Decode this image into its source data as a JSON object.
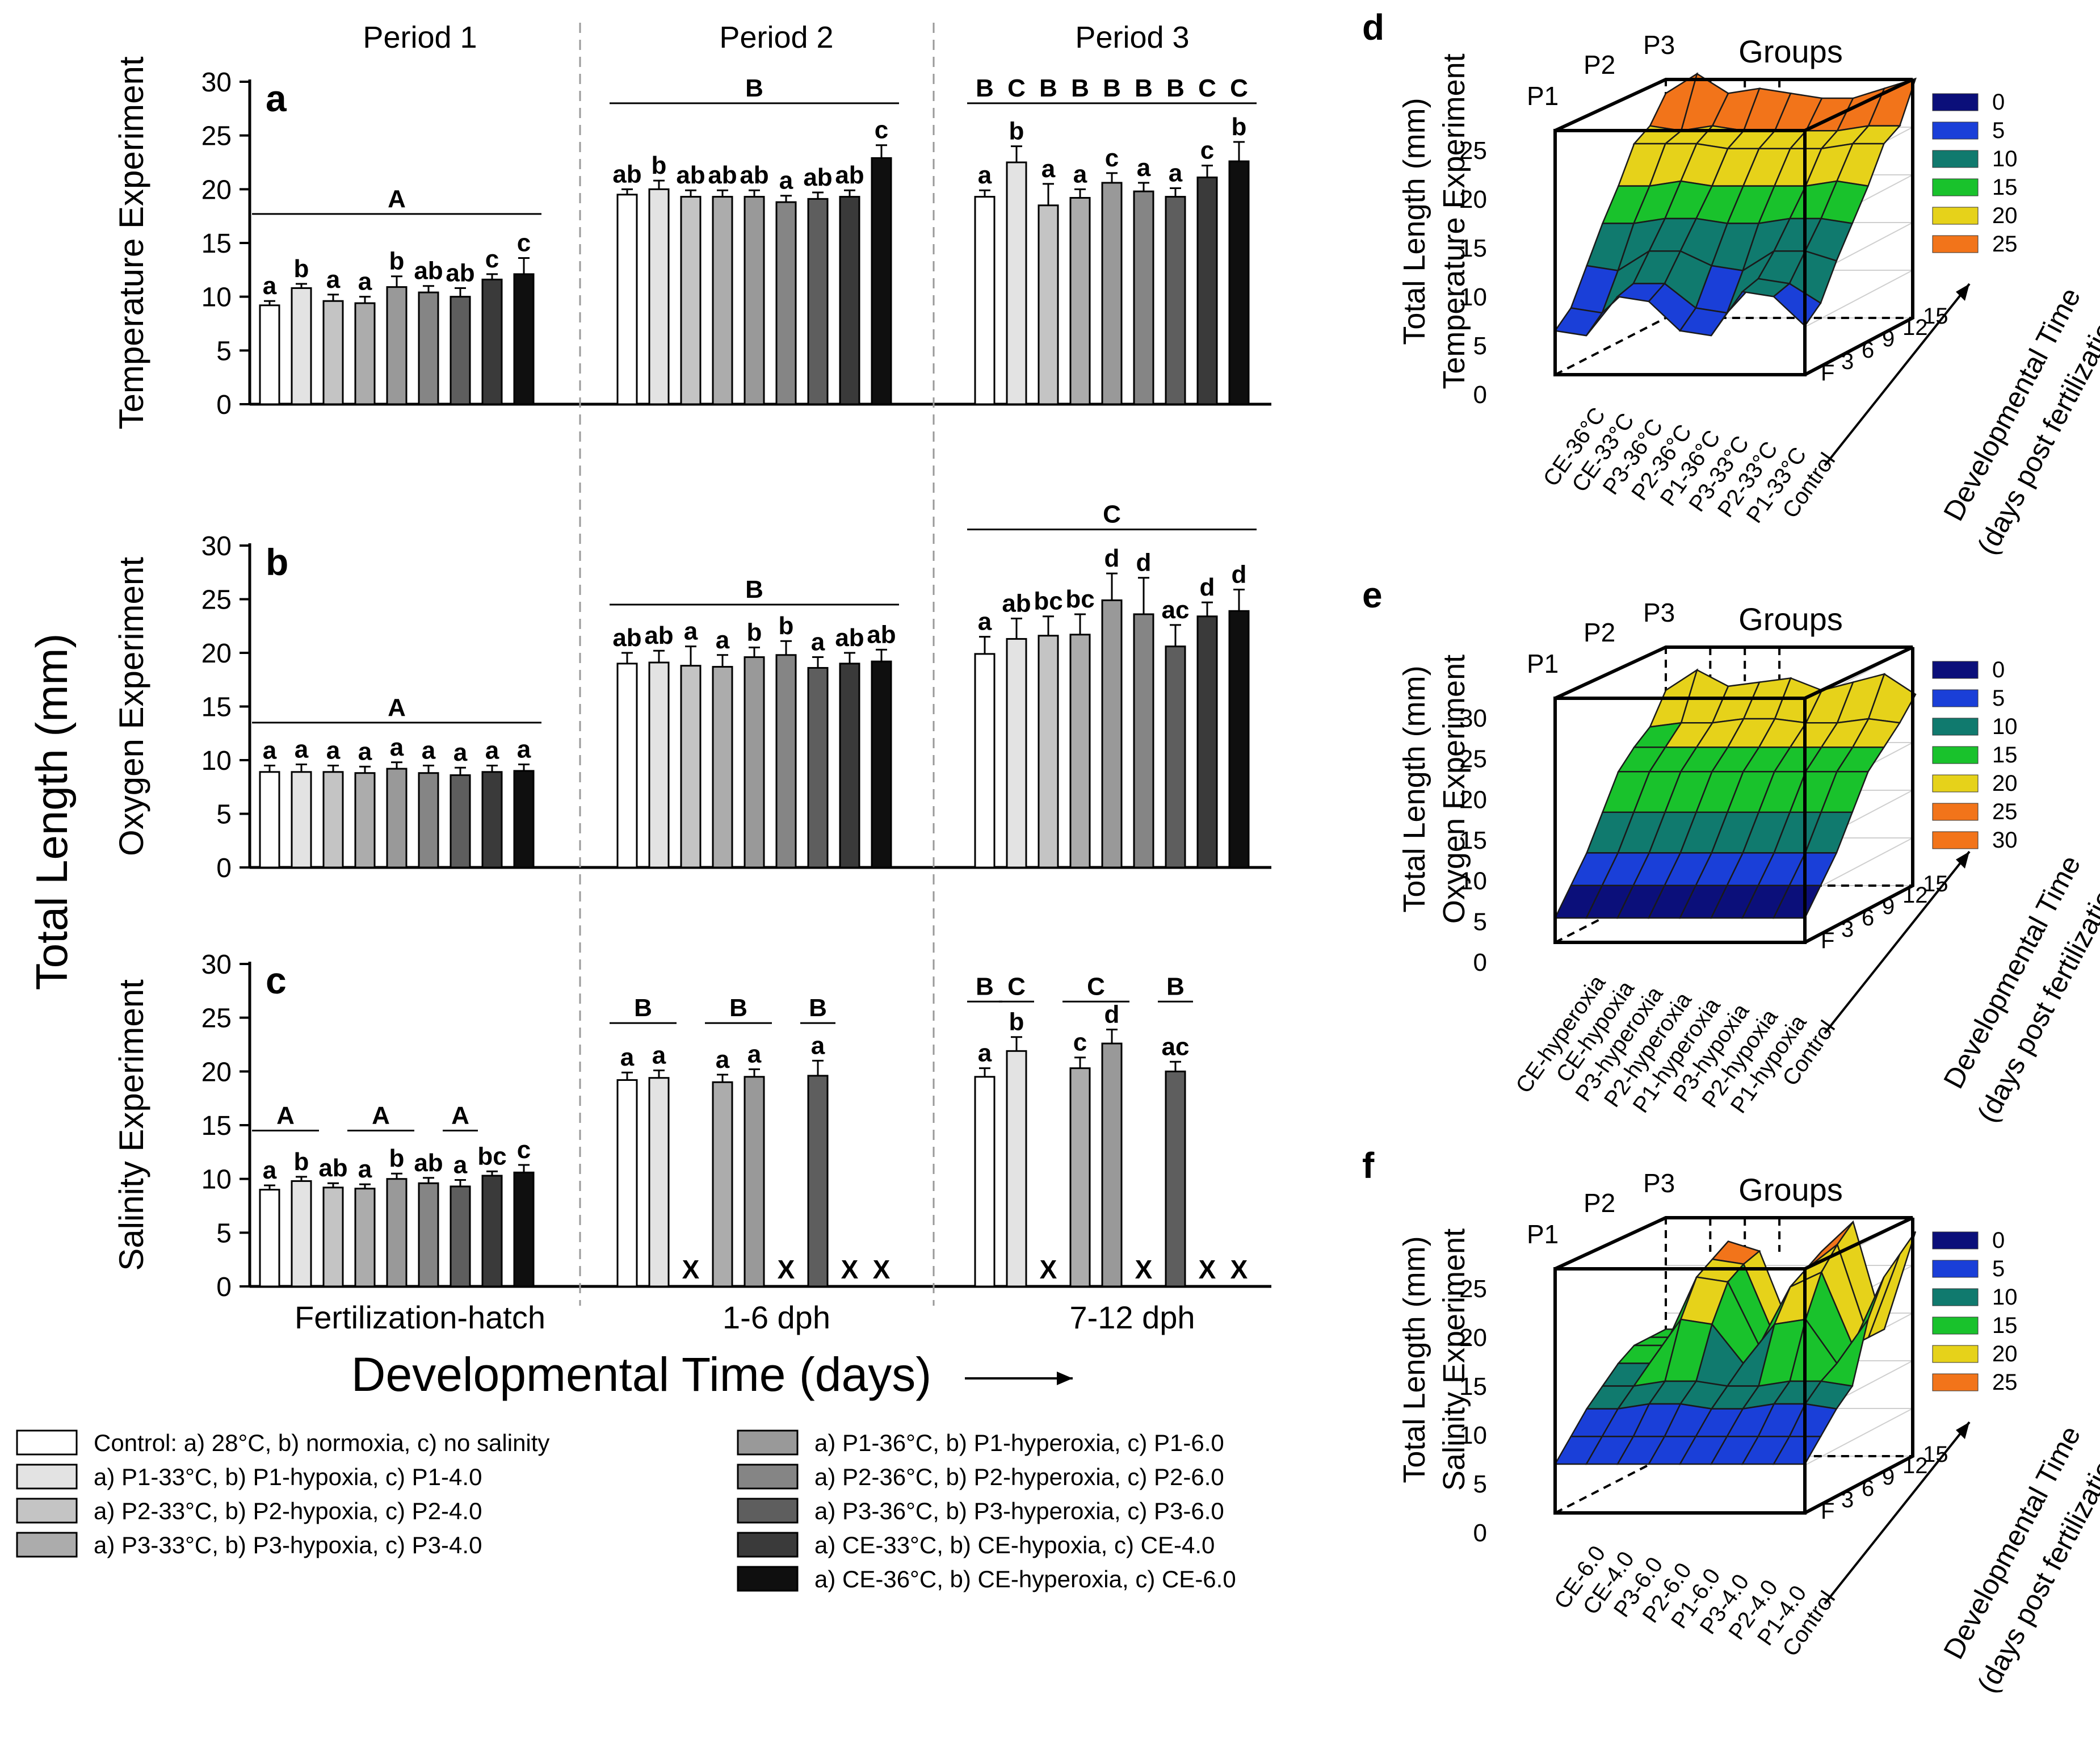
{
  "chart_data": [
    {
      "id": "a",
      "type": "bar",
      "panel_letter": "a",
      "ylabel": "Temperature Experiment",
      "ylim": [
        0,
        30
      ],
      "yticks": [
        "0",
        "5",
        "10",
        "15",
        "20",
        "25",
        "30"
      ],
      "period_titles": [
        "Period 1",
        "Period 2",
        "Period 3"
      ],
      "periods": [
        {
          "values": [
            9.2,
            10.8,
            9.6,
            9.4,
            10.9,
            10.4,
            10.0,
            11.6,
            12.1
          ],
          "errors": [
            0.4,
            0.4,
            0.6,
            0.6,
            1.0,
            0.6,
            0.8,
            0.5,
            1.5
          ],
          "labels": [
            "a",
            "b",
            "a",
            "a",
            "b",
            "ab",
            "ab",
            "c",
            "c"
          ]
        },
        {
          "values": [
            19.5,
            20.0,
            19.3,
            19.3,
            19.3,
            18.8,
            19.1,
            19.3,
            22.9
          ],
          "errors": [
            0.5,
            0.8,
            0.6,
            0.6,
            0.6,
            0.6,
            0.6,
            0.6,
            1.2
          ],
          "labels": [
            "ab",
            "b",
            "ab",
            "ab",
            "ab",
            "a",
            "ab",
            "ab",
            "c"
          ]
        },
        {
          "values": [
            19.3,
            22.5,
            18.5,
            19.2,
            20.6,
            19.8,
            19.3,
            21.1,
            22.6
          ],
          "errors": [
            0.6,
            1.5,
            2.0,
            0.8,
            0.9,
            0.8,
            0.8,
            1.1,
            1.8
          ],
          "labels": [
            "a",
            "b",
            "a",
            "a",
            "c",
            "a",
            "a",
            "c",
            "b"
          ]
        }
      ],
      "group_lines": [
        {
          "period": 0,
          "from": 0,
          "to": 8,
          "label": "A",
          "y": 17.7
        },
        {
          "period": 1,
          "from": 0,
          "to": 8,
          "label": "B",
          "y": 28.0
        }
      ],
      "per_bar_group_labels": {
        "period": 2,
        "y": 28.0,
        "labels": [
          "B",
          "C",
          "B",
          "B",
          "B",
          "B",
          "B",
          "C",
          "C"
        ]
      }
    },
    {
      "id": "b",
      "type": "bar",
      "panel_letter": "b",
      "ylabel": "Oxygen Experiment",
      "ylim": [
        0,
        30
      ],
      "yticks": [
        "0",
        "5",
        "10",
        "15",
        "20",
        "25",
        "30"
      ],
      "periods": [
        {
          "values": [
            8.9,
            8.9,
            8.9,
            8.8,
            9.2,
            8.8,
            8.6,
            8.9,
            9.0
          ],
          "errors": [
            0.6,
            0.7,
            0.6,
            0.6,
            0.6,
            0.7,
            0.7,
            0.6,
            0.6
          ],
          "labels": [
            "a",
            "a",
            "a",
            "a",
            "a",
            "a",
            "a",
            "a",
            "a"
          ]
        },
        {
          "values": [
            19.0,
            19.1,
            18.8,
            18.7,
            19.6,
            19.8,
            18.6,
            19.0,
            19.2
          ],
          "errors": [
            1.0,
            1.1,
            1.8,
            1.1,
            0.9,
            1.3,
            1.0,
            1.0,
            1.1
          ],
          "labels": [
            "ab",
            "ab",
            "a",
            "a",
            "b",
            "b",
            "a",
            "ab",
            "ab"
          ]
        },
        {
          "values": [
            19.9,
            21.3,
            21.6,
            21.7,
            24.9,
            23.6,
            20.6,
            23.4,
            23.9
          ],
          "errors": [
            1.6,
            1.9,
            1.8,
            1.9,
            2.5,
            3.4,
            2.0,
            1.3,
            2.0
          ],
          "labels": [
            "a",
            "ab",
            "bc",
            "bc",
            "d",
            "d",
            "ac",
            "d",
            "d"
          ]
        }
      ],
      "group_lines": [
        {
          "period": 0,
          "from": 0,
          "to": 8,
          "label": "A",
          "y": 13.5
        },
        {
          "period": 1,
          "from": 0,
          "to": 8,
          "label": "B",
          "y": 24.5
        },
        {
          "period": 2,
          "from": 0,
          "to": 8,
          "label": "C",
          "y": 31.5
        }
      ]
    },
    {
      "id": "c",
      "type": "bar",
      "panel_letter": "c",
      "ylabel": "Salinity Experiment",
      "ylim": [
        0,
        30
      ],
      "yticks": [
        "0",
        "5",
        "10",
        "15",
        "20",
        "25",
        "30"
      ],
      "x_categories": [
        "Fertilization-hatch",
        "1-6 dph",
        "7-12 dph"
      ],
      "missing_marker": "X",
      "periods": [
        {
          "values": [
            9.0,
            9.8,
            9.2,
            9.1,
            10.0,
            9.6,
            9.3,
            10.3,
            10.6
          ],
          "errors": [
            0.4,
            0.4,
            0.4,
            0.4,
            0.5,
            0.5,
            0.6,
            0.4,
            0.7
          ],
          "labels": [
            "a",
            "b",
            "ab",
            "a",
            "b",
            "ab",
            "a",
            "bc",
            "c"
          ]
        },
        {
          "values": [
            19.2,
            19.4,
            null,
            19.0,
            19.5,
            null,
            19.6,
            null,
            null
          ],
          "errors": [
            0.7,
            0.7,
            0,
            0.7,
            0.7,
            0,
            1.4,
            0,
            0
          ],
          "labels": [
            "a",
            "a",
            "",
            "a",
            "a",
            "",
            "a",
            "",
            ""
          ]
        },
        {
          "values": [
            19.5,
            21.9,
            null,
            20.3,
            22.6,
            null,
            20.0,
            null,
            null
          ],
          "errors": [
            0.8,
            1.3,
            0,
            1.0,
            1.3,
            0,
            0.9,
            0,
            0
          ],
          "labels": [
            "a",
            "b",
            "",
            "c",
            "d",
            "",
            "ac",
            "",
            ""
          ]
        }
      ],
      "group_lines": [
        {
          "period": 0,
          "from": 0,
          "to": 1,
          "label": "A",
          "y": 14.5
        },
        {
          "period": 0,
          "from": 3,
          "to": 4,
          "label": "A",
          "y": 14.5
        },
        {
          "period": 0,
          "from": 6,
          "to": 6,
          "label": "A",
          "y": 14.5
        },
        {
          "period": 1,
          "from": 0,
          "to": 1,
          "label": "B",
          "y": 24.5
        },
        {
          "period": 1,
          "from": 3,
          "to": 4,
          "label": "B",
          "y": 24.5
        },
        {
          "period": 1,
          "from": 6,
          "to": 6,
          "label": "B",
          "y": 24.5
        },
        {
          "period": 2,
          "from": 0,
          "to": 0,
          "label": "B",
          "y": 26.5
        },
        {
          "period": 2,
          "from": 1,
          "to": 1,
          "label": "C",
          "y": 26.5
        },
        {
          "period": 2,
          "from": 3,
          "to": 4,
          "label": "C",
          "y": 26.5
        },
        {
          "period": 2,
          "from": 6,
          "to": 6,
          "label": "B",
          "y": 26.5
        }
      ]
    },
    {
      "id": "d",
      "type": "surface3d",
      "panel_letter": "d",
      "zlabel": "Total Length (mm)",
      "zsublabel": "Temperature Experiment",
      "title": "Groups",
      "zticks": [
        "0",
        "5",
        "10",
        "15",
        "20",
        "25"
      ],
      "zmax": 25,
      "time_ticks": [
        "F",
        "3",
        "6",
        "9",
        "12",
        "15"
      ],
      "time_label_1": "Developmental Time",
      "time_label_2": "(days post fertilization)",
      "period_markers": [
        "P1",
        "P2",
        "P3"
      ],
      "groups": [
        "CE-36°C",
        "CE-33°C",
        "P3-36°C",
        "P2-36°C",
        "P1-36°C",
        "P3-33°C",
        "P2-33°C",
        "P1-33°C",
        "Control"
      ],
      "surface": [
        [
          4.5,
          4.0,
          8.0,
          7.5,
          4.5,
          4.0,
          8.5,
          8.0,
          5.0
        ],
        [
          6.0,
          5.5,
          8.5,
          8.5,
          6.0,
          5.5,
          9.0,
          8.5,
          6.5
        ],
        [
          9.5,
          9.0,
          11.0,
          11.0,
          9.5,
          9.0,
          11.0,
          11.0,
          10.0
        ],
        [
          13.0,
          13.0,
          13.5,
          13.5,
          13.0,
          13.0,
          13.5,
          13.5,
          13.0
        ],
        [
          16.0,
          16.0,
          16.5,
          16.0,
          16.0,
          16.0,
          16.0,
          16.5,
          16.0
        ],
        [
          19.5,
          19.5,
          19.5,
          19.0,
          19.0,
          19.0,
          19.0,
          19.5,
          19.5
        ],
        [
          20.5,
          20.0,
          20.5,
          20.0,
          20.0,
          20.0,
          20.0,
          20.5,
          20.5
        ],
        [
          23.0,
          25.0,
          23.0,
          23.5,
          23.0,
          22.5,
          22.5,
          23.5,
          24.5
        ]
      ],
      "legend": [
        "0",
        "5",
        "10",
        "15",
        "20",
        "25"
      ]
    },
    {
      "id": "e",
      "type": "surface3d",
      "panel_letter": "e",
      "zlabel": "Total Length (mm)",
      "zsublabel": "Oxygen Experiment",
      "title": "Groups",
      "zticks": [
        "0",
        "5",
        "10",
        "15",
        "20",
        "25",
        "30"
      ],
      "zmax": 30,
      "time_ticks": [
        "F",
        "3",
        "6",
        "9",
        "12",
        "15"
      ],
      "time_label_1": "Developmental Time",
      "time_label_2": "(days post fertilization)",
      "period_markers": [
        "P1",
        "P2",
        "P3"
      ],
      "groups": [
        "CE-hyperoxia",
        "CE-hypoxia",
        "P3-hyperoxia",
        "P2-hyperoxia",
        "P1-hyperoxia",
        "P3-hypoxia",
        "P2-hypoxia",
        "P1-hypoxia",
        "Control"
      ],
      "surface": [
        [
          3.0,
          3.0,
          3.0,
          3.0,
          3.0,
          3.0,
          3.0,
          3.0,
          3.0
        ],
        [
          6.0,
          6.0,
          6.0,
          6.0,
          6.0,
          6.0,
          6.0,
          6.0,
          6.0
        ],
        [
          9.0,
          9.0,
          9.0,
          9.0,
          9.0,
          9.0,
          9.0,
          9.0,
          9.0
        ],
        [
          13.0,
          13.0,
          13.0,
          13.0,
          13.0,
          13.0,
          13.0,
          13.0,
          13.0
        ],
        [
          17.0,
          17.0,
          17.0,
          17.0,
          17.0,
          17.0,
          17.0,
          17.0,
          17.0
        ],
        [
          19.0,
          19.0,
          19.0,
          19.0,
          19.0,
          19.0,
          19.0,
          19.0,
          19.0
        ],
        [
          20.5,
          21.0,
          21.0,
          21.5,
          21.5,
          21.0,
          21.0,
          21.5,
          21.0
        ],
        [
          24.0,
          26.5,
          24.5,
          25.0,
          25.5,
          24.0,
          25.0,
          26.0,
          23.5
        ]
      ],
      "legend": [
        "0",
        "5",
        "10",
        "15",
        "20",
        "25",
        "30"
      ]
    },
    {
      "id": "f",
      "type": "surface3d",
      "panel_letter": "f",
      "zlabel": "Total Length (mm)",
      "zsublabel": "Salinity Experiment",
      "title": "Groups",
      "zticks": [
        "0",
        "5",
        "10",
        "15",
        "20",
        "25"
      ],
      "zmax": 25,
      "time_ticks": [
        "F",
        "3",
        "6",
        "9",
        "12",
        "15"
      ],
      "time_label_1": "Developmental Time",
      "time_label_2": "(days post fertilization)",
      "period_markers": [
        "P1",
        "P2",
        "P3"
      ],
      "groups": [
        "CE-6.0",
        "CE-4.0",
        "P3-6.0",
        "P2-6.0",
        "P1-6.0",
        "P3-4.0",
        "P2-4.0",
        "P1-4.0",
        "Control"
      ],
      "surface": [
        [
          5.0,
          5.0,
          5.0,
          5.0,
          5.0,
          5.0,
          5.0,
          5.0,
          5.0
        ],
        [
          7.0,
          7.0,
          7.0,
          7.0,
          7.0,
          7.0,
          7.0,
          7.0,
          7.0
        ],
        [
          9.0,
          9.0,
          9.5,
          9.5,
          9.0,
          9.0,
          9.5,
          9.5,
          9.0
        ],
        [
          10.5,
          10.5,
          11.0,
          11.0,
          10.5,
          10.5,
          11.0,
          11.0,
          10.5
        ],
        [
          12.0,
          12.0,
          16.5,
          16.0,
          12.0,
          16.0,
          16.5,
          12.0,
          16.5
        ],
        [
          13.0,
          13.0,
          20.0,
          19.5,
          13.0,
          19.0,
          20.5,
          13.0,
          20.0
        ],
        [
          13.0,
          13.0,
          21.0,
          20.5,
          13.0,
          20.0,
          22.5,
          13.0,
          21.5
        ],
        [
          13.0,
          13.0,
          22.0,
          21.0,
          13.0,
          21.0,
          24.0,
          13.0,
          23.0
        ]
      ],
      "legend": [
        "0",
        "5",
        "10",
        "15",
        "20",
        "25"
      ]
    }
  ],
  "shared": {
    "main_ylabel": "Total Length (mm)",
    "main_xlabel": "Developmental Time (days)",
    "legend_entries": [
      {
        "label": "Control: a) 28°C, b) normoxia, c) no salinity",
        "color": "#ffffff"
      },
      {
        "label": "a) P1-33°C, b) P1-hypoxia, c) P1-4.0",
        "color": "#e3e3e3"
      },
      {
        "label": "a) P2-33°C, b) P2-hypoxia, c) P2-4.0",
        "color": "#c4c4c4"
      },
      {
        "label": "a) P3-33°C, b) P3-hypoxia, c) P3-4.0",
        "color": "#acacac"
      },
      {
        "label": "a) P1-36°C, b) P1-hyperoxia, c) P1-6.0",
        "color": "#999999"
      },
      {
        "label": "a) P2-36°C, b) P2-hyperoxia, c) P2-6.0",
        "color": "#858585"
      },
      {
        "label": "a) P3-36°C, b) P3-hyperoxia, c) P3-6.0",
        "color": "#5e5e5e"
      },
      {
        "label": "a) CE-33°C, b) CE-hypoxia, c) CE-4.0",
        "color": "#3a3a3a"
      },
      {
        "label": "a) CE-36°C, b) CE-hyperoxia, c) CE-6.0",
        "color": "#0f0f0f"
      }
    ],
    "colorscale": [
      "#0b0f7a",
      "#1a3fd8",
      "#107a6e",
      "#19c22c",
      "#e6d21a",
      "#f2741a"
    ]
  }
}
